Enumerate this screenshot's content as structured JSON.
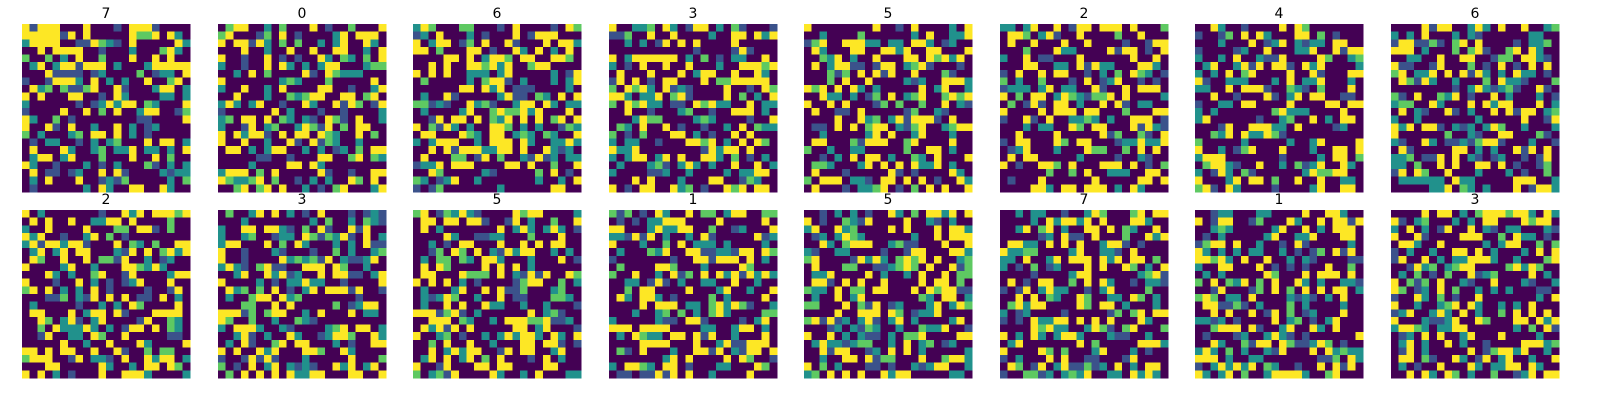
{
  "chart_data": {
    "type": "heatmap",
    "grid": false,
    "colormap": "viridis",
    "colormap_stops": [
      "#440154",
      "#3b528b",
      "#21918c",
      "#5ec962",
      "#fde725"
    ],
    "value_range": [
      0,
      1
    ],
    "pixel_grid_rows": 22,
    "pixel_grid_cols": 22,
    "panel_rows": 2,
    "panel_cols": 8,
    "panels": [
      {
        "title": "7"
      },
      {
        "title": "0"
      },
      {
        "title": "6"
      },
      {
        "title": "3"
      },
      {
        "title": "5"
      },
      {
        "title": "2"
      },
      {
        "title": "4"
      },
      {
        "title": "6"
      },
      {
        "title": "2"
      },
      {
        "title": "3"
      },
      {
        "title": "5"
      },
      {
        "title": "1"
      },
      {
        "title": "5"
      },
      {
        "title": "7"
      },
      {
        "title": "1"
      },
      {
        "title": "3"
      }
    ]
  }
}
